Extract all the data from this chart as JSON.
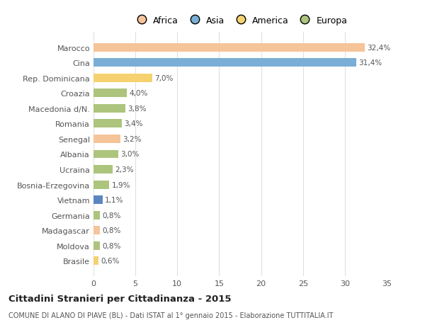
{
  "countries": [
    "Marocco",
    "Cina",
    "Rep. Dominicana",
    "Croazia",
    "Macedonia d/N.",
    "Romania",
    "Senegal",
    "Albania",
    "Ucraina",
    "Bosnia-Erzegovina",
    "Vietnam",
    "Germania",
    "Madagascar",
    "Moldova",
    "Brasile"
  ],
  "values": [
    32.4,
    31.4,
    7.0,
    4.0,
    3.8,
    3.4,
    3.2,
    3.0,
    2.3,
    1.9,
    1.1,
    0.8,
    0.8,
    0.8,
    0.6
  ],
  "labels": [
    "32,4%",
    "31,4%",
    "7,0%",
    "4,0%",
    "3,8%",
    "3,4%",
    "3,2%",
    "3,0%",
    "2,3%",
    "1,9%",
    "1,1%",
    "0,8%",
    "0,8%",
    "0,8%",
    "0,6%"
  ],
  "colors": [
    "#f5c499",
    "#7aaed6",
    "#f5d170",
    "#adc47d",
    "#adc47d",
    "#adc47d",
    "#f5c499",
    "#adc47d",
    "#adc47d",
    "#adc47d",
    "#5b85c0",
    "#adc47d",
    "#f5c499",
    "#adc47d",
    "#f5d170"
  ],
  "legend_labels": [
    "Africa",
    "Asia",
    "America",
    "Europa"
  ],
  "legend_colors": [
    "#f5c499",
    "#7aaed6",
    "#f5d170",
    "#adc47d"
  ],
  "title": "Cittadini Stranieri per Cittadinanza - 2015",
  "subtitle": "COMUNE DI ALANO DI PIAVE (BL) - Dati ISTAT al 1° gennaio 2015 - Elaborazione TUTTITALIA.IT",
  "xlim": [
    0,
    35
  ],
  "xticks": [
    0,
    5,
    10,
    15,
    20,
    25,
    30,
    35
  ],
  "background_color": "#ffffff",
  "grid_color": "#e0e0e0"
}
